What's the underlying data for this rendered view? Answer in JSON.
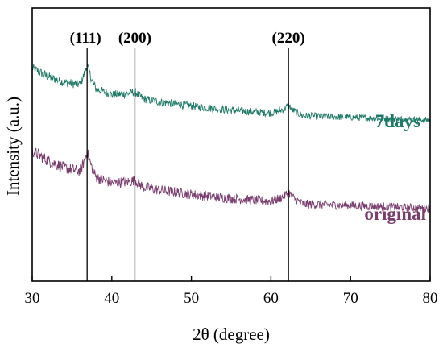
{
  "chart_data": {
    "type": "line",
    "title": "",
    "xlabel": "2θ (degree)",
    "ylabel": "Intensity (a.u.)",
    "xlim": [
      30,
      80
    ],
    "x_ticks": [
      30,
      40,
      50,
      60,
      70,
      80
    ],
    "y_ticks_shown": false,
    "grid": false,
    "colors": {
      "7days": "#1f7a68",
      "original": "#7a3d6e",
      "axis": "#000000"
    },
    "reference_lines": [
      {
        "label": "(111)",
        "x": 36.9
      },
      {
        "label": "(200)",
        "x": 42.9
      },
      {
        "label": "(220)",
        "x": 62.2
      }
    ],
    "series": [
      {
        "name": "7days",
        "x": [
          30,
          32,
          34,
          36,
          36.9,
          38,
          40,
          42.9,
          44,
          46,
          50,
          55,
          60,
          62.2,
          64,
          70,
          75,
          80
        ],
        "y": [
          1.52,
          1.46,
          1.42,
          1.4,
          1.49,
          1.37,
          1.33,
          1.34,
          1.3,
          1.28,
          1.25,
          1.22,
          1.2,
          1.23,
          1.18,
          1.17,
          1.16,
          1.15
        ],
        "noise": 0.022
      },
      {
        "name": "original",
        "x": [
          30,
          32,
          34,
          36,
          36.9,
          38,
          40,
          42.9,
          44,
          46,
          50,
          55,
          60,
          62.2,
          64,
          70,
          75,
          80
        ],
        "y": [
          0.93,
          0.86,
          0.81,
          0.78,
          0.87,
          0.74,
          0.7,
          0.71,
          0.67,
          0.65,
          0.62,
          0.59,
          0.57,
          0.61,
          0.55,
          0.54,
          0.53,
          0.52
        ],
        "noise": 0.028
      }
    ],
    "ylim": [
      0,
      1.95
    ]
  }
}
